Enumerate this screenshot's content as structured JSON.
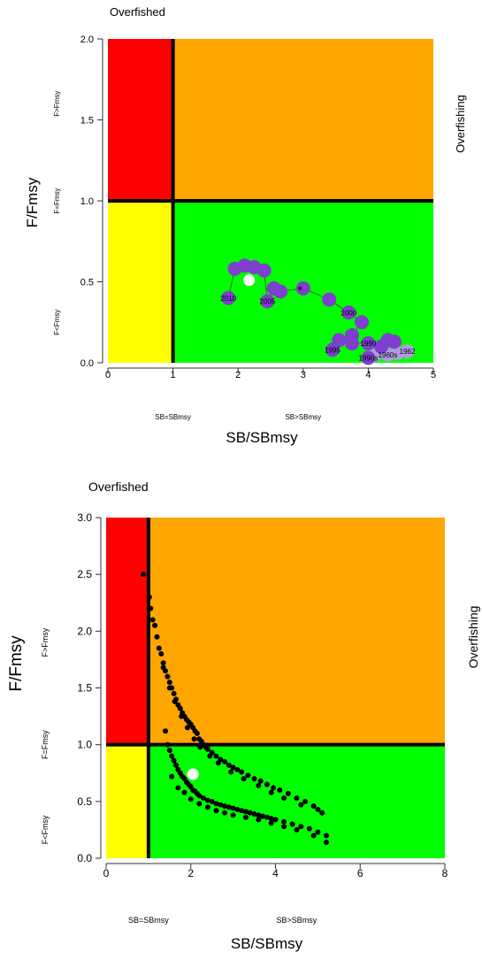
{
  "chart_data": [
    {
      "type": "scatter",
      "top_title": "Overfished",
      "right_title": "Overfishing",
      "xlabel": "SB/SBmsy",
      "ylabel": "F/Fmsy",
      "xlim": [
        0,
        5
      ],
      "ylim": [
        0,
        2
      ],
      "x_ticks": [
        "0",
        "1",
        "2",
        "3",
        "4",
        "5"
      ],
      "y_ticks": [
        "0.0",
        "0.5",
        "1.0",
        "1.5",
        "2.0"
      ],
      "x_zone_labels": [
        "SB=SBmsy",
        "SB>SBmsy"
      ],
      "y_zone_labels": [
        "F<Fmsy",
        "F=Fmsy",
        "F>Fmsy"
      ],
      "zone_colors": {
        "overfished_overfishing": "#ff0000",
        "overfishing": "#ffa500",
        "overfished": "#ffff00",
        "healthy": "#00ff00"
      },
      "trajectory_color": "#7e3fcf",
      "trajectory_highlight_color": "#b29ae0",
      "trajectory": [
        {
          "x": 4.6,
          "y": 0.07,
          "label": "1962"
        },
        {
          "x": 4.45,
          "y": 0.06,
          "label": ""
        },
        {
          "x": 4.3,
          "y": 0.05,
          "label": "1960s"
        },
        {
          "x": 4.1,
          "y": 0.05,
          "label": ""
        },
        {
          "x": 4.0,
          "y": 0.03,
          "label": "1990s"
        },
        {
          "x": 4.2,
          "y": 0.1,
          "label": ""
        },
        {
          "x": 4.4,
          "y": 0.13,
          "label": ""
        },
        {
          "x": 4.3,
          "y": 0.14,
          "label": ""
        },
        {
          "x": 4.0,
          "y": 0.12,
          "label": "1990"
        },
        {
          "x": 3.75,
          "y": 0.12,
          "label": ""
        },
        {
          "x": 3.55,
          "y": 0.14,
          "label": ""
        },
        {
          "x": 3.45,
          "y": 0.08,
          "label": "1995"
        },
        {
          "x": 3.75,
          "y": 0.17,
          "label": ""
        },
        {
          "x": 3.9,
          "y": 0.25,
          "label": ""
        },
        {
          "x": 3.7,
          "y": 0.31,
          "label": "2000"
        },
        {
          "x": 3.4,
          "y": 0.39,
          "label": ""
        },
        {
          "x": 3.0,
          "y": 0.46,
          "label": ""
        },
        {
          "x": 2.65,
          "y": 0.44,
          "label": ""
        },
        {
          "x": 2.55,
          "y": 0.46,
          "label": ""
        },
        {
          "x": 2.45,
          "y": 0.38,
          "label": "2005"
        },
        {
          "x": 2.4,
          "y": 0.57,
          "label": ""
        },
        {
          "x": 2.25,
          "y": 0.59,
          "label": ""
        },
        {
          "x": 2.1,
          "y": 0.6,
          "label": ""
        },
        {
          "x": 1.95,
          "y": 0.58,
          "label": ""
        },
        {
          "x": 1.85,
          "y": 0.4,
          "label": "2010"
        }
      ],
      "current": {
        "x": 2.17,
        "y": 0.51
      }
    },
    {
      "type": "scatter",
      "top_title": "Overfished",
      "right_title": "Overfishing",
      "xlabel": "SB/SBmsy",
      "ylabel": "F/Fmsy",
      "xlim": [
        0,
        8
      ],
      "ylim": [
        0,
        3
      ],
      "x_ticks": [
        "0",
        "2",
        "4",
        "6",
        "8"
      ],
      "y_ticks": [
        "0.0",
        "0.5",
        "1.0",
        "1.5",
        "2.0",
        "2.5",
        "3.0"
      ],
      "x_zone_labels": [
        "SB=SBmsy",
        "SB>SBmsy"
      ],
      "y_zone_labels": [
        "F<Fmsy",
        "F=Fmsy",
        "F>Fmsy"
      ],
      "zone_colors": {
        "overfished_overfishing": "#ff0000",
        "overfishing": "#ffa500",
        "overfished": "#ffff00",
        "healthy": "#00ff00"
      },
      "point_color": "#000000",
      "upper_band": [
        [
          0.88,
          2.5
        ],
        [
          1.02,
          2.3
        ],
        [
          1.05,
          2.2
        ],
        [
          1.1,
          2.1
        ],
        [
          1.15,
          2.05
        ],
        [
          1.2,
          1.95
        ],
        [
          1.25,
          1.85
        ],
        [
          1.3,
          1.8
        ],
        [
          1.35,
          1.72
        ],
        [
          1.4,
          1.65
        ],
        [
          1.45,
          1.6
        ],
        [
          1.5,
          1.55
        ],
        [
          1.55,
          1.5
        ],
        [
          1.6,
          1.45
        ],
        [
          1.65,
          1.4
        ],
        [
          1.7,
          1.35
        ],
        [
          1.75,
          1.32
        ],
        [
          1.8,
          1.28
        ],
        [
          1.85,
          1.25
        ],
        [
          1.9,
          1.22
        ],
        [
          1.95,
          1.2
        ],
        [
          2.0,
          1.18
        ],
        [
          2.05,
          1.15
        ],
        [
          2.1,
          1.12
        ],
        [
          2.15,
          1.1
        ],
        [
          2.2,
          1.05
        ],
        [
          2.25,
          1.03
        ],
        [
          2.3,
          1.0
        ],
        [
          2.35,
          0.98
        ],
        [
          2.4,
          0.96
        ],
        [
          2.5,
          0.93
        ],
        [
          2.6,
          0.9
        ],
        [
          2.7,
          0.87
        ],
        [
          2.8,
          0.85
        ],
        [
          2.9,
          0.82
        ],
        [
          3.0,
          0.8
        ],
        [
          3.1,
          0.78
        ],
        [
          3.2,
          0.76
        ],
        [
          3.35,
          0.73
        ],
        [
          3.5,
          0.7
        ],
        [
          3.65,
          0.68
        ],
        [
          3.8,
          0.65
        ],
        [
          3.95,
          0.62
        ],
        [
          4.1,
          0.6
        ],
        [
          4.3,
          0.57
        ],
        [
          4.5,
          0.53
        ],
        [
          4.7,
          0.5
        ],
        [
          4.9,
          0.46
        ],
        [
          5.0,
          0.43
        ],
        [
          5.1,
          0.4
        ],
        [
          1.35,
          1.68
        ],
        [
          1.5,
          1.5
        ],
        [
          1.62,
          1.38
        ],
        [
          1.78,
          1.25
        ],
        [
          1.92,
          1.15
        ],
        [
          2.08,
          1.05
        ],
        [
          2.22,
          0.98
        ],
        [
          2.45,
          0.9
        ],
        [
          2.65,
          0.84
        ],
        [
          2.95,
          0.76
        ],
        [
          3.25,
          0.7
        ],
        [
          3.6,
          0.64
        ],
        [
          3.9,
          0.58
        ],
        [
          4.2,
          0.53
        ],
        [
          4.6,
          0.47
        ]
      ],
      "lower_band": [
        [
          1.4,
          1.12
        ],
        [
          1.45,
          1.0
        ],
        [
          1.5,
          0.95
        ],
        [
          1.55,
          0.9
        ],
        [
          1.6,
          0.86
        ],
        [
          1.65,
          0.82
        ],
        [
          1.7,
          0.78
        ],
        [
          1.75,
          0.75
        ],
        [
          1.8,
          0.72
        ],
        [
          1.85,
          0.7
        ],
        [
          1.9,
          0.67
        ],
        [
          1.95,
          0.65
        ],
        [
          2.0,
          0.63
        ],
        [
          2.05,
          0.6
        ],
        [
          2.1,
          0.59
        ],
        [
          2.15,
          0.57
        ],
        [
          2.2,
          0.55
        ],
        [
          2.3,
          0.53
        ],
        [
          2.4,
          0.51
        ],
        [
          2.5,
          0.5
        ],
        [
          2.6,
          0.48
        ],
        [
          2.7,
          0.47
        ],
        [
          2.8,
          0.46
        ],
        [
          2.9,
          0.45
        ],
        [
          3.0,
          0.44
        ],
        [
          3.1,
          0.43
        ],
        [
          3.2,
          0.42
        ],
        [
          3.3,
          0.41
        ],
        [
          3.4,
          0.4
        ],
        [
          3.5,
          0.39
        ],
        [
          3.6,
          0.38
        ],
        [
          3.7,
          0.37
        ],
        [
          3.8,
          0.36
        ],
        [
          3.9,
          0.35
        ],
        [
          4.0,
          0.34
        ],
        [
          4.2,
          0.32
        ],
        [
          4.4,
          0.3
        ],
        [
          4.6,
          0.28
        ],
        [
          4.8,
          0.26
        ],
        [
          5.0,
          0.23
        ],
        [
          5.2,
          0.2
        ],
        [
          5.2,
          0.14
        ],
        [
          1.55,
          0.72
        ],
        [
          1.7,
          0.62
        ],
        [
          1.85,
          0.58
        ],
        [
          2.0,
          0.52
        ],
        [
          2.2,
          0.48
        ],
        [
          2.4,
          0.45
        ],
        [
          2.6,
          0.42
        ],
        [
          2.8,
          0.4
        ],
        [
          3.0,
          0.38
        ],
        [
          3.3,
          0.36
        ],
        [
          3.6,
          0.34
        ],
        [
          3.9,
          0.31
        ],
        [
          4.2,
          0.28
        ],
        [
          4.5,
          0.25
        ],
        [
          4.9,
          0.2
        ]
      ],
      "current": {
        "x": 2.05,
        "y": 0.74
      }
    }
  ]
}
